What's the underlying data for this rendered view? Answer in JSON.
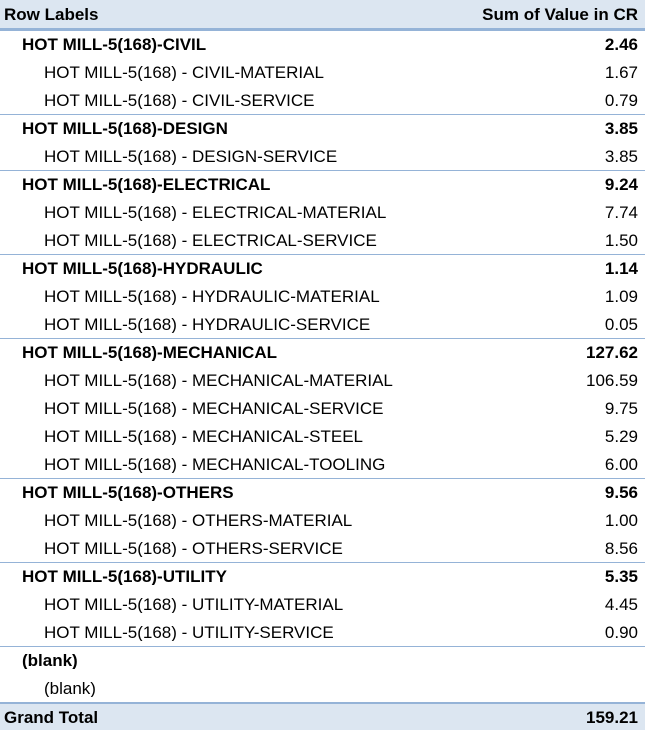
{
  "header": {
    "row_labels": "Row Labels",
    "sum_label": "Sum of Value in CR"
  },
  "rows": [
    {
      "type": "group",
      "label": "HOT MILL-5(168)-CIVIL",
      "value": "2.46"
    },
    {
      "type": "item",
      "label": "HOT MILL-5(168) - CIVIL-MATERIAL",
      "value": "1.67"
    },
    {
      "type": "item",
      "label": "HOT MILL-5(168) - CIVIL-SERVICE",
      "value": "0.79"
    },
    {
      "type": "group",
      "label": "HOT MILL-5(168)-DESIGN",
      "value": "3.85"
    },
    {
      "type": "item",
      "label": "HOT MILL-5(168) - DESIGN-SERVICE",
      "value": "3.85"
    },
    {
      "type": "group",
      "label": "HOT MILL-5(168)-ELECTRICAL",
      "value": "9.24"
    },
    {
      "type": "item",
      "label": "HOT MILL-5(168) - ELECTRICAL-MATERIAL",
      "value": "7.74"
    },
    {
      "type": "item",
      "label": "HOT MILL-5(168) - ELECTRICAL-SERVICE",
      "value": "1.50"
    },
    {
      "type": "group",
      "label": "HOT MILL-5(168)-HYDRAULIC",
      "value": "1.14"
    },
    {
      "type": "item",
      "label": "HOT MILL-5(168) - HYDRAULIC-MATERIAL",
      "value": "1.09"
    },
    {
      "type": "item",
      "label": "HOT MILL-5(168) - HYDRAULIC-SERVICE",
      "value": "0.05"
    },
    {
      "type": "group",
      "label": "HOT MILL-5(168)-MECHANICAL",
      "value": "127.62"
    },
    {
      "type": "item",
      "label": "HOT MILL-5(168) - MECHANICAL-MATERIAL",
      "value": "106.59"
    },
    {
      "type": "item",
      "label": "HOT MILL-5(168) - MECHANICAL-SERVICE",
      "value": "9.75"
    },
    {
      "type": "item",
      "label": "HOT MILL-5(168) - MECHANICAL-STEEL",
      "value": "5.29"
    },
    {
      "type": "item",
      "label": "HOT MILL-5(168) - MECHANICAL-TOOLING",
      "value": "6.00"
    },
    {
      "type": "group",
      "label": "HOT MILL-5(168)-OTHERS",
      "value": "9.56"
    },
    {
      "type": "item",
      "label": "HOT MILL-5(168) - OTHERS-MATERIAL",
      "value": "1.00"
    },
    {
      "type": "item",
      "label": "HOT MILL-5(168) - OTHERS-SERVICE",
      "value": "8.56"
    },
    {
      "type": "group",
      "label": "HOT MILL-5(168)-UTILITY",
      "value": "5.35"
    },
    {
      "type": "item",
      "label": "HOT MILL-5(168) - UTILITY-MATERIAL",
      "value": "4.45"
    },
    {
      "type": "item",
      "label": "HOT MILL-5(168) - UTILITY-SERVICE",
      "value": "0.90"
    },
    {
      "type": "group",
      "label": "(blank)",
      "value": ""
    },
    {
      "type": "item",
      "label": "(blank)",
      "value": ""
    }
  ],
  "grand_total": {
    "label": "Grand Total",
    "value": "159.21"
  },
  "colors": {
    "header_fill": "#dce6f1",
    "border": "#95b3d7"
  }
}
